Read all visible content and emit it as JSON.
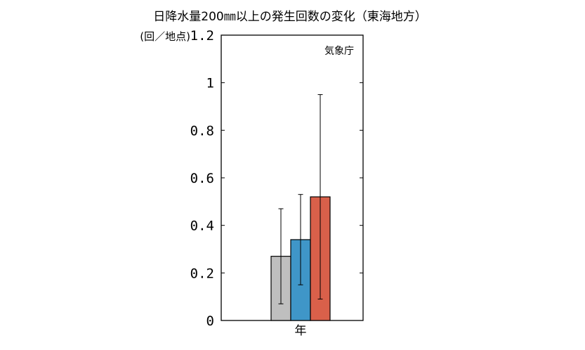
{
  "chart_data": {
    "type": "bar",
    "title": "日降水量200㎜以上の発生回数の変化（東海地方）",
    "unit_label": "(回／地点)",
    "source_label": "気象庁",
    "categories": [
      "年"
    ],
    "ylim": [
      0,
      1.2
    ],
    "y_ticks": [
      0,
      0.2,
      0.4,
      0.6,
      0.8,
      1,
      1.2
    ],
    "y_tick_labels": [
      "0",
      "0.2",
      "0.4",
      "0.6",
      "0.8",
      "1",
      "1.2"
    ],
    "grid": false,
    "legend": "none",
    "series": [
      {
        "values": [
          0.27
        ],
        "error_low": [
          0.07
        ],
        "error_high": [
          0.47
        ],
        "color": "#bfbfbf"
      },
      {
        "values": [
          0.34
        ],
        "error_low": [
          0.15
        ],
        "error_high": [
          0.53
        ],
        "color": "#3f96c8"
      },
      {
        "values": [
          0.52
        ],
        "error_low": [
          0.09
        ],
        "error_high": [
          0.95
        ],
        "color": "#d9604a"
      }
    ]
  }
}
